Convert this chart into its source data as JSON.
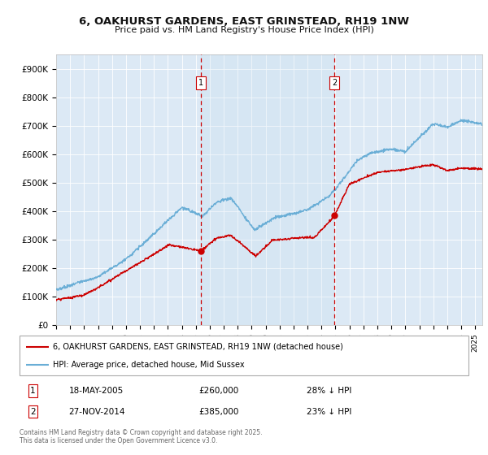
{
  "title": "6, OAKHURST GARDENS, EAST GRINSTEAD, RH19 1NW",
  "subtitle": "Price paid vs. HM Land Registry's House Price Index (HPI)",
  "background_color": "#ffffff",
  "plot_bg_color": "#dce9f5",
  "ylim": [
    0,
    950000
  ],
  "yticks": [
    0,
    100000,
    200000,
    300000,
    400000,
    500000,
    600000,
    700000,
    800000,
    900000
  ],
  "ytick_labels": [
    "£0",
    "£100K",
    "£200K",
    "£300K",
    "£400K",
    "£500K",
    "£600K",
    "£700K",
    "£800K",
    "£900K"
  ],
  "sale1_date": 2005.38,
  "sale1_price": 260000,
  "sale1_label": "1",
  "sale2_date": 2014.92,
  "sale2_price": 385000,
  "sale2_label": "2",
  "hpi_color": "#6aaed6",
  "price_color": "#cc0000",
  "vline_color": "#cc0000",
  "legend_line1": "6, OAKHURST GARDENS, EAST GRINSTEAD, RH19 1NW (detached house)",
  "legend_line2": "HPI: Average price, detached house, Mid Sussex",
  "table_row1_num": "1",
  "table_row1_date": "18-MAY-2005",
  "table_row1_price": "£260,000",
  "table_row1_hpi": "28% ↓ HPI",
  "table_row2_num": "2",
  "table_row2_date": "27-NOV-2014",
  "table_row2_price": "£385,000",
  "table_row2_hpi": "23% ↓ HPI",
  "footer": "Contains HM Land Registry data © Crown copyright and database right 2025.\nThis data is licensed under the Open Government Licence v3.0.",
  "xmin": 1995.0,
  "xmax": 2025.5
}
